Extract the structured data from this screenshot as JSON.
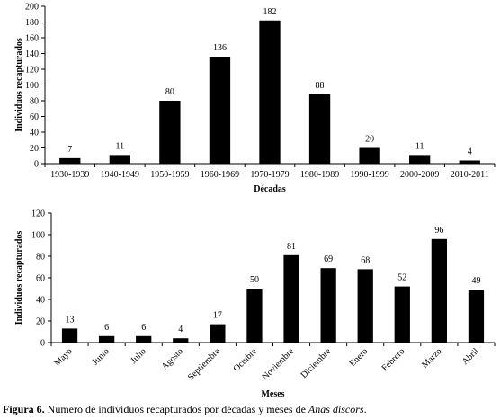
{
  "caption": {
    "label": "Figura 6.",
    "text": " Número de individuos recapturados por décadas y meses de ",
    "species": "Anas discors",
    "end": "."
  },
  "chart_data": [
    {
      "type": "bar",
      "categories": [
        "1930-1939",
        "1940-1949",
        "1950-1959",
        "1960-1969",
        "1970-1979",
        "1980-1989",
        "1990-1999",
        "2000-2009",
        "2010-2011"
      ],
      "values": [
        7,
        11,
        80,
        136,
        182,
        88,
        20,
        11,
        4
      ],
      "data_labels": [
        "7",
        "11",
        "80",
        "136",
        "182",
        "88",
        "20",
        "11",
        "4"
      ],
      "xlabel": "Décadas",
      "ylabel": "Individuos recapturados",
      "ylim": [
        0,
        200
      ],
      "yticks": [
        0,
        20,
        40,
        60,
        80,
        100,
        120,
        140,
        160,
        180,
        200
      ],
      "bar_color": "#000000",
      "grid": false
    },
    {
      "type": "bar",
      "categories": [
        "Mayo",
        "Junio",
        "Julio",
        "Agosto",
        "Septiembre",
        "Octubre",
        "Noviembre",
        "Diciembre",
        "Enero",
        "Febrero",
        "Marzo",
        "Abril"
      ],
      "values": [
        13,
        6,
        6,
        4,
        17,
        50,
        81,
        69,
        68,
        52,
        96,
        49
      ],
      "data_labels": [
        "13",
        "6",
        "6",
        "4",
        "17",
        "50",
        "81",
        "69",
        "68",
        "52",
        "96",
        "49"
      ],
      "xlabel": "Meses",
      "ylabel": "Individuos recapturados",
      "ylim": [
        0,
        120
      ],
      "yticks": [
        0,
        20,
        40,
        60,
        80,
        100,
        120
      ],
      "bar_color": "#000000",
      "grid": false
    }
  ]
}
